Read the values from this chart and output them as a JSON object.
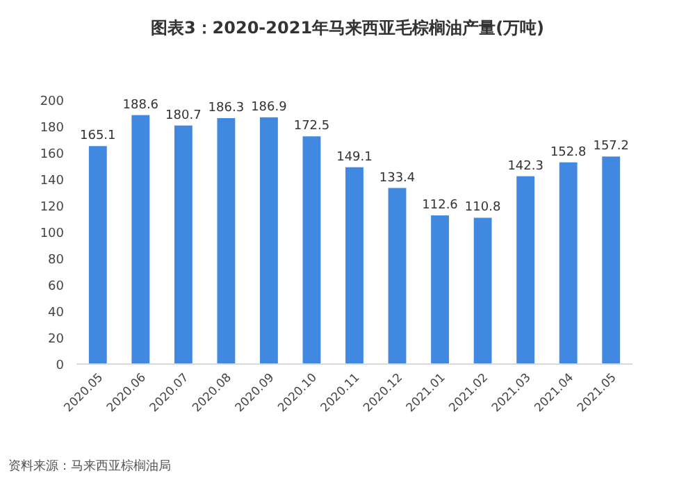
{
  "chart_data": {
    "type": "bar",
    "title": "图表3：2020-2021年马来西亚毛棕榈油产量(万吨)",
    "categories": [
      "2020.05",
      "2020.06",
      "2020.07",
      "2020.08",
      "2020.09",
      "2020.10",
      "2020.11",
      "2020.12",
      "2021.01",
      "2021.02",
      "2021.03",
      "2021.04",
      "2021.05"
    ],
    "values": [
      165.1,
      188.6,
      180.7,
      186.3,
      186.9,
      172.5,
      149.1,
      133.4,
      112.6,
      110.8,
      142.3,
      152.8,
      157.2
    ],
    "color": "#4189e0",
    "ylim": [
      0,
      200
    ],
    "yticks": [
      0,
      20,
      40,
      60,
      80,
      100,
      120,
      140,
      160,
      180,
      200
    ],
    "data_labels": true,
    "annotations": [
      "资料来源：马来西亚棕榈油局"
    ]
  }
}
